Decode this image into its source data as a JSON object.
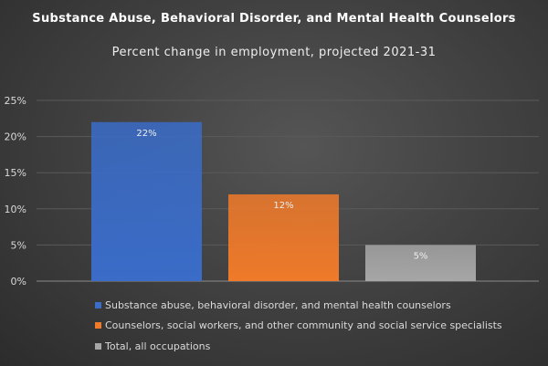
{
  "chart_data": {
    "type": "bar",
    "title": "Substance Abuse, Behavioral Disorder, and Mental Health Counselors",
    "subtitle": "Percent change in employment, projected 2021-31",
    "categories": [
      "Substance abuse, behavioral disorder, and mental health counselors",
      "Counselors, social workers, and other community and social service specialists",
      "Total, all occupations"
    ],
    "values": [
      22,
      12,
      5
    ],
    "data_labels": [
      "22%",
      "12%",
      "5%"
    ],
    "colors": [
      "#3a6cc8",
      "#ef7a2a",
      "#a6a6a6"
    ],
    "ylim": [
      0,
      25
    ],
    "yticks": [
      "0%",
      "5%",
      "10%",
      "15%",
      "20%",
      "25%"
    ],
    "grid": true,
    "legend": "bottom"
  }
}
